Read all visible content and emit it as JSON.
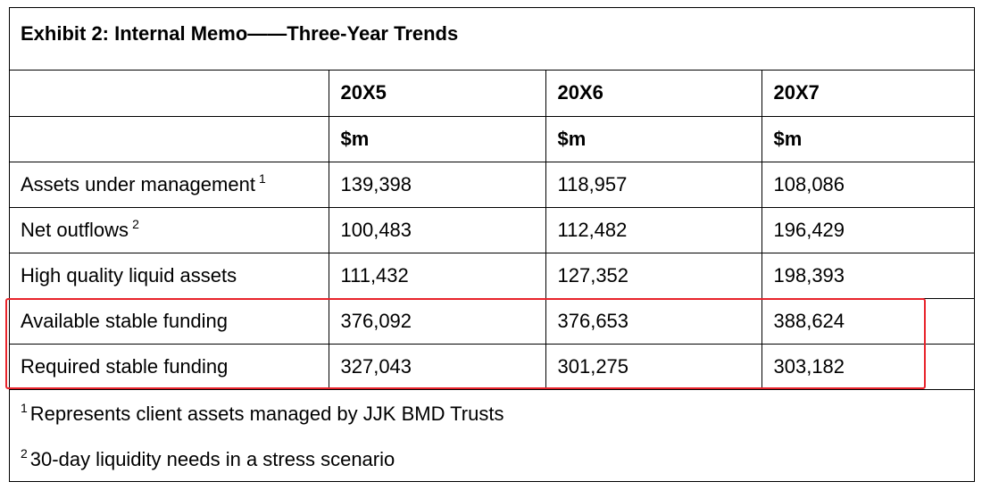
{
  "exhibit": {
    "title": "Exhibit 2: Internal Memo——Three-Year Trends"
  },
  "table": {
    "years": [
      "20X5",
      "20X6",
      "20X7"
    ],
    "unit": "$m",
    "rows": [
      {
        "label": "Assets under management",
        "footnote": "1",
        "values": [
          "139,398",
          "118,957",
          "108,086"
        ]
      },
      {
        "label": "Net outflows",
        "footnote": "2",
        "values": [
          "100,483",
          "112,482",
          "196,429"
        ]
      },
      {
        "label": "High quality liquid assets",
        "footnote": "",
        "values": [
          "111,432",
          "127,352",
          "198,393"
        ]
      },
      {
        "label": "Available stable funding",
        "footnote": "",
        "values": [
          "376,092",
          "376,653",
          "388,624"
        ]
      },
      {
        "label": "Required stable funding",
        "footnote": "",
        "values": [
          "327,043",
          "301,275",
          "303,182"
        ]
      }
    ]
  },
  "footnotes": [
    {
      "marker": "1",
      "text": "Represents client assets managed by JJK BMD Trusts"
    },
    {
      "marker": "2",
      "text": "30-day liquidity needs in a stress scenario"
    }
  ],
  "highlight": {
    "color": "#e8232b",
    "rows": [
      "Available stable funding",
      "Required stable funding"
    ]
  }
}
